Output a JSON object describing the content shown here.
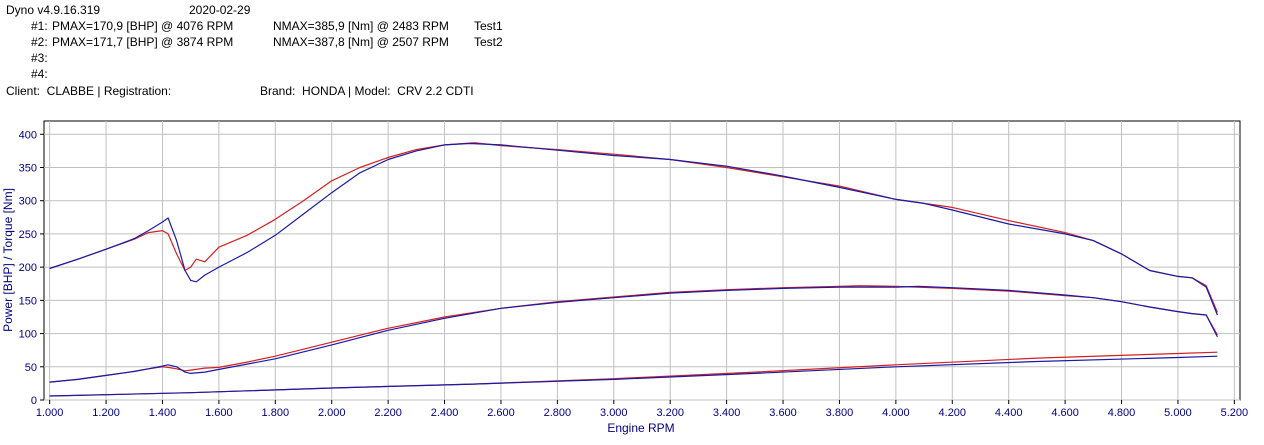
{
  "header": {
    "app_version": "Dyno v4.9.16.319",
    "date": "2020-02-29",
    "runs": [
      {
        "label": "#1:",
        "pmax": "PMAX=170,9 [BHP] @ 4076 RPM",
        "nmax": "NMAX=385,9 [Nm] @ 2483 RPM",
        "name": "Test1"
      },
      {
        "label": "#2:",
        "pmax": "PMAX=171,7 [BHP] @ 3874 RPM",
        "nmax": "NMAX=387,8 [Nm] @ 2507 RPM",
        "name": "Test2"
      },
      {
        "label": "#3:",
        "pmax": "",
        "nmax": "",
        "name": ""
      },
      {
        "label": "#4:",
        "pmax": "",
        "nmax": "",
        "name": ""
      }
    ],
    "client_line": "Client:  CLABBE | Registration:",
    "brand_line": "Brand:  HONDA | Model:  CRV 2.2 CDTI"
  },
  "chart_data": {
    "type": "line",
    "xlabel": "Engine RPM",
    "ylabel": "Power [BHP] / Torque [Nm]",
    "xlim": [
      0.98,
      5.22
    ],
    "ylim": [
      0,
      420
    ],
    "x_ticks": [
      1.0,
      1.2,
      1.4,
      1.6,
      1.8,
      2.0,
      2.2,
      2.4,
      2.6,
      2.8,
      3.0,
      3.2,
      3.4,
      3.6,
      3.8,
      4.0,
      4.2,
      4.4,
      4.6,
      4.8,
      5.0,
      5.2
    ],
    "x_tick_labels": [
      "1.000",
      "1.200",
      "1.400",
      "1.600",
      "1.800",
      "2.000",
      "2.200",
      "2.400",
      "2.600",
      "2.800",
      "3.000",
      "3.200",
      "3.400",
      "3.600",
      "3.800",
      "4.000",
      "4.200",
      "4.400",
      "4.600",
      "4.800",
      "5.000",
      "5.200"
    ],
    "y_ticks": [
      0,
      50,
      100,
      150,
      200,
      250,
      300,
      350,
      400
    ],
    "y_tick_labels": [
      "0",
      "50",
      "100",
      "150",
      "200",
      "250",
      "300",
      "350",
      "400"
    ],
    "grid": true,
    "colors": {
      "run1": "#1a1aa8",
      "run2": "#d42020",
      "background": "#ffffff",
      "grid": "#c0c0c0",
      "axis_text": "#000080"
    },
    "series": [
      {
        "run": 1,
        "quantity": "torque",
        "color": "#1a1aa8",
        "x": [
          1.0,
          1.1,
          1.2,
          1.3,
          1.35,
          1.4,
          1.42,
          1.45,
          1.48,
          1.5,
          1.52,
          1.55,
          1.6,
          1.7,
          1.8,
          1.9,
          2.0,
          2.1,
          2.2,
          2.3,
          2.4,
          2.48,
          2.5,
          2.6,
          2.8,
          3.0,
          3.2,
          3.4,
          3.6,
          3.8,
          4.0,
          4.1,
          4.2,
          4.4,
          4.6,
          4.7,
          4.8,
          4.9,
          5.0,
          5.05,
          5.1,
          5.14
        ],
        "y": [
          198,
          212,
          227,
          243,
          255,
          268,
          274,
          240,
          195,
          180,
          178,
          188,
          200,
          222,
          248,
          280,
          312,
          342,
          362,
          375,
          384,
          386,
          386,
          384,
          376,
          368,
          362,
          352,
          337,
          320,
          302,
          296,
          286,
          265,
          250,
          240,
          220,
          195,
          186,
          184,
          170,
          128
        ]
      },
      {
        "run": 2,
        "quantity": "torque",
        "color": "#d42020",
        "x": [
          1.0,
          1.1,
          1.2,
          1.3,
          1.35,
          1.4,
          1.42,
          1.45,
          1.48,
          1.5,
          1.52,
          1.55,
          1.6,
          1.7,
          1.8,
          1.9,
          2.0,
          2.1,
          2.2,
          2.3,
          2.4,
          2.5,
          2.51,
          2.6,
          2.8,
          3.0,
          3.2,
          3.4,
          3.6,
          3.8,
          4.0,
          4.2,
          4.4,
          4.6,
          4.7,
          4.8,
          4.9,
          5.0,
          5.05,
          5.1,
          5.14
        ],
        "y": [
          198,
          212,
          227,
          242,
          252,
          255,
          250,
          220,
          195,
          200,
          212,
          208,
          230,
          248,
          272,
          300,
          330,
          350,
          365,
          377,
          384,
          387,
          387,
          383,
          377,
          370,
          362,
          350,
          336,
          322,
          302,
          290,
          270,
          252,
          240,
          220,
          195,
          186,
          184,
          172,
          132
        ]
      },
      {
        "run": 1,
        "quantity": "power",
        "color": "#1a1aa8",
        "x": [
          1.0,
          1.1,
          1.2,
          1.3,
          1.35,
          1.4,
          1.42,
          1.45,
          1.48,
          1.5,
          1.55,
          1.6,
          1.7,
          1.8,
          2.0,
          2.2,
          2.4,
          2.6,
          2.8,
          3.0,
          3.2,
          3.4,
          3.6,
          3.8,
          4.0,
          4.08,
          4.2,
          4.4,
          4.6,
          4.7,
          4.8,
          4.9,
          5.0,
          5.05,
          5.1,
          5.14
        ],
        "y": [
          27,
          31,
          37,
          43,
          47,
          51,
          53,
          50,
          42,
          40,
          42,
          46,
          54,
          62,
          83,
          105,
          123,
          138,
          147,
          154,
          161,
          165,
          168,
          170,
          170,
          171,
          169,
          165,
          158,
          154,
          148,
          140,
          133,
          130,
          128,
          95
        ]
      },
      {
        "run": 2,
        "quantity": "power",
        "color": "#d42020",
        "x": [
          1.0,
          1.1,
          1.2,
          1.3,
          1.35,
          1.4,
          1.42,
          1.45,
          1.48,
          1.5,
          1.55,
          1.6,
          1.7,
          1.8,
          2.0,
          2.2,
          2.4,
          2.6,
          2.8,
          3.0,
          3.2,
          3.4,
          3.6,
          3.8,
          3.87,
          4.0,
          4.2,
          4.4,
          4.6,
          4.7,
          4.8,
          4.9,
          5.0,
          5.05,
          5.1,
          5.14
        ],
        "y": [
          27,
          31,
          37,
          43,
          47,
          50,
          49,
          47,
          44,
          45,
          48,
          49,
          57,
          66,
          87,
          108,
          125,
          138,
          148,
          155,
          162,
          166,
          169,
          171,
          172,
          171,
          168,
          164,
          157,
          154,
          148,
          140,
          133,
          130,
          128,
          98
        ]
      },
      {
        "run": 1,
        "quantity": "loss",
        "color": "#1a1aa8",
        "x": [
          1.0,
          1.5,
          2.0,
          2.5,
          3.0,
          3.5,
          4.0,
          4.5,
          5.0,
          5.14
        ],
        "y": [
          6,
          11,
          18,
          24,
          31,
          40,
          50,
          58,
          64,
          66
        ]
      },
      {
        "run": 2,
        "quantity": "loss",
        "color": "#d42020",
        "x": [
          1.0,
          1.5,
          2.0,
          2.5,
          3.0,
          3.5,
          4.0,
          4.5,
          5.0,
          5.14
        ],
        "y": [
          6,
          11,
          18,
          24,
          32,
          42,
          53,
          63,
          70,
          72
        ]
      }
    ]
  }
}
